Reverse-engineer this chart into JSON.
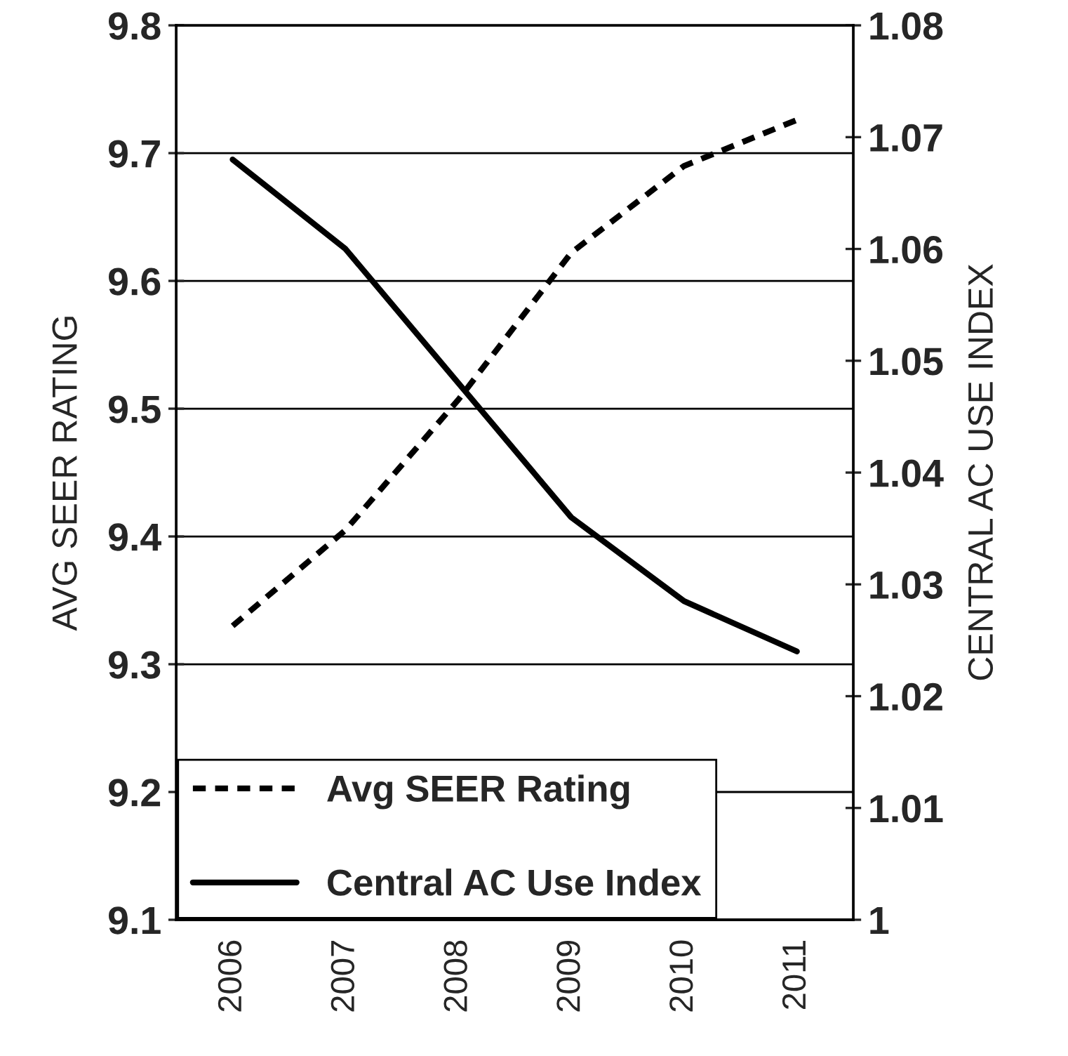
{
  "chart_data": {
    "type": "line",
    "ylabel": "AVG SEER RATING",
    "y2label": "CENTRAL AC USE INDEX",
    "categories": [
      "2006",
      "2007",
      "2008",
      "2009",
      "2010",
      "2011"
    ],
    "series": [
      {
        "name": "Avg SEER Rating",
        "color": "#000000",
        "line_style": "dashed",
        "values": [
          9.33,
          9.405,
          9.507,
          9.622,
          9.69,
          9.726
        ]
      },
      {
        "name": "Central AC Use Index",
        "color": "#000000",
        "line_style": "solid",
        "axis": "y2",
        "values": [
          1.068,
          1.06,
          1.048,
          1.036,
          1.0285,
          1.024
        ]
      }
    ],
    "ylim": [
      9.1,
      9.8
    ],
    "yticks": [
      9.1,
      9.2,
      9.3,
      9.4,
      9.5,
      9.6,
      9.7,
      9.8
    ],
    "y2lim": [
      1,
      1.08
    ],
    "y2ticks": [
      1,
      1.01,
      1.02,
      1.03,
      1.04,
      1.05,
      1.06,
      1.07,
      1.08
    ],
    "grid": "y",
    "legend": "bottom left",
    "marker": "none"
  }
}
